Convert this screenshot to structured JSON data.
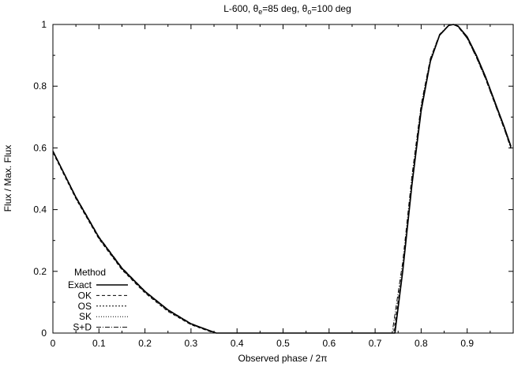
{
  "chart_data": {
    "type": "line",
    "title": {
      "prefix": "L-600, θ",
      "sub1": "e",
      "mid": "=85 deg, θ",
      "sub2": "o",
      "suffix": "=100 deg"
    },
    "xlabel": "Observed phase / 2π",
    "ylabel": "Flux / Max. Flux",
    "xlim": [
      0,
      1
    ],
    "ylim": [
      0,
      1
    ],
    "xticks": [
      "0",
      "0.1",
      "0.2",
      "0.3",
      "0.4",
      "0.5",
      "0.6",
      "0.7",
      "0.8",
      "0.9"
    ],
    "xtick_values": [
      0,
      0.1,
      0.2,
      0.3,
      0.4,
      0.5,
      0.6,
      0.7,
      0.8,
      0.9
    ],
    "yticks": [
      "0",
      "0.2",
      "0.4",
      "0.6",
      "0.8",
      "1"
    ],
    "ytick_values": [
      0,
      0.2,
      0.4,
      0.6,
      0.8,
      1
    ],
    "grid": false,
    "legend": {
      "title": "Method",
      "placement": "bottom-left"
    },
    "series": [
      {
        "name": "Exact",
        "style": "solid",
        "x": [
          0,
          0.05,
          0.1,
          0.15,
          0.2,
          0.25,
          0.3,
          0.355,
          0.5,
          0.6,
          0.7,
          0.743,
          0.76,
          0.78,
          0.8,
          0.82,
          0.84,
          0.86,
          0.87,
          0.88,
          0.9,
          0.92,
          0.94,
          0.96,
          0.98,
          0.995
        ],
        "y": [
          0.59,
          0.44,
          0.31,
          0.21,
          0.135,
          0.075,
          0.03,
          0,
          0,
          0,
          0,
          0,
          0.2,
          0.48,
          0.72,
          0.88,
          0.965,
          0.997,
          1.0,
          0.995,
          0.96,
          0.9,
          0.83,
          0.75,
          0.67,
          0.605
        ]
      },
      {
        "name": "OK",
        "style": "dashed",
        "x": [
          0,
          0.05,
          0.1,
          0.15,
          0.2,
          0.25,
          0.3,
          0.35,
          0.5,
          0.6,
          0.7,
          0.74,
          0.76,
          0.78,
          0.8,
          0.82,
          0.84,
          0.86,
          0.87,
          0.88,
          0.9,
          0.92,
          0.94,
          0.96,
          0.98,
          0.995
        ],
        "y": [
          0.585,
          0.435,
          0.305,
          0.205,
          0.13,
          0.07,
          0.027,
          0,
          0,
          0,
          0,
          0,
          0.21,
          0.49,
          0.73,
          0.885,
          0.967,
          0.997,
          1.0,
          0.993,
          0.955,
          0.895,
          0.825,
          0.745,
          0.665,
          0.6
        ]
      },
      {
        "name": "OS",
        "style": "dotted-dense",
        "x": [
          0,
          0.05,
          0.1,
          0.15,
          0.2,
          0.25,
          0.3,
          0.352,
          0.5,
          0.6,
          0.7,
          0.742,
          0.76,
          0.78,
          0.8,
          0.82,
          0.84,
          0.86,
          0.87,
          0.88,
          0.9,
          0.92,
          0.94,
          0.96,
          0.98,
          0.995
        ],
        "y": [
          0.588,
          0.437,
          0.307,
          0.207,
          0.132,
          0.072,
          0.028,
          0,
          0,
          0,
          0,
          0,
          0.205,
          0.485,
          0.725,
          0.882,
          0.966,
          0.997,
          1.0,
          0.994,
          0.957,
          0.897,
          0.827,
          0.747,
          0.667,
          0.602
        ]
      },
      {
        "name": "SK",
        "style": "dotted",
        "x": [
          0,
          0.05,
          0.1,
          0.15,
          0.2,
          0.25,
          0.3,
          0.354,
          0.5,
          0.6,
          0.7,
          0.743,
          0.76,
          0.78,
          0.8,
          0.82,
          0.84,
          0.86,
          0.87,
          0.88,
          0.9,
          0.92,
          0.94,
          0.96,
          0.98,
          0.995
        ],
        "y": [
          0.589,
          0.439,
          0.309,
          0.209,
          0.134,
          0.074,
          0.029,
          0,
          0,
          0,
          0,
          0,
          0.202,
          0.482,
          0.722,
          0.881,
          0.965,
          0.997,
          1.0,
          0.995,
          0.959,
          0.899,
          0.829,
          0.749,
          0.669,
          0.604
        ]
      },
      {
        "name": "S+D",
        "style": "dashdot",
        "x": [
          0,
          0.05,
          0.1,
          0.15,
          0.2,
          0.25,
          0.3,
          0.353,
          0.5,
          0.6,
          0.7,
          0.737,
          0.76,
          0.78,
          0.8,
          0.82,
          0.84,
          0.86,
          0.87,
          0.88,
          0.9,
          0.92,
          0.94,
          0.96,
          0.98,
          0.995
        ],
        "y": [
          0.59,
          0.442,
          0.312,
          0.212,
          0.136,
          0.076,
          0.031,
          0,
          0,
          0,
          0,
          0,
          0.23,
          0.51,
          0.74,
          0.89,
          0.968,
          0.998,
          1.0,
          0.993,
          0.955,
          0.893,
          0.823,
          0.743,
          0.663,
          0.598
        ]
      }
    ]
  }
}
